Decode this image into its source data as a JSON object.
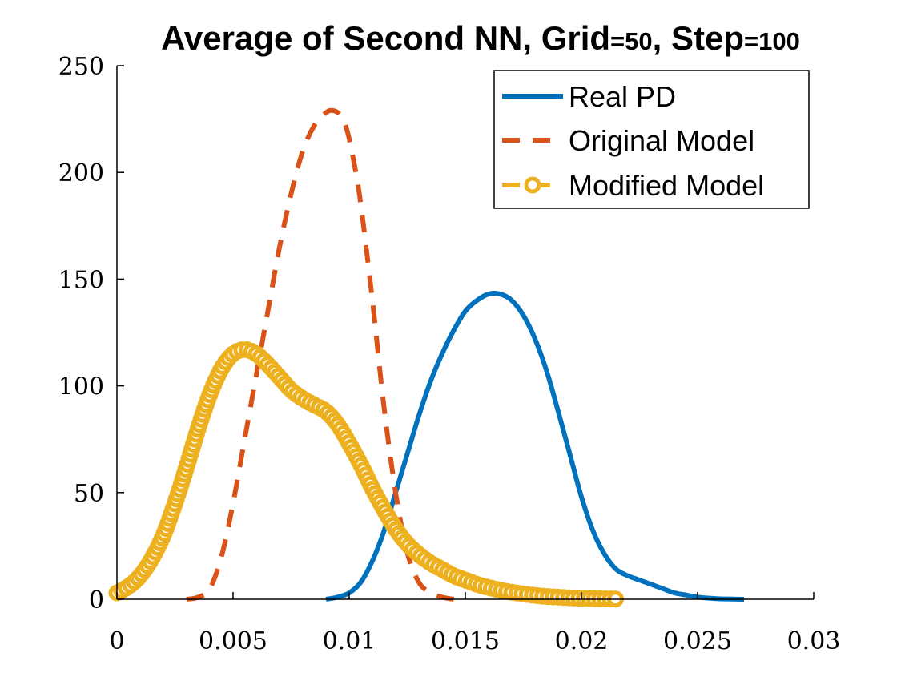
{
  "chart_data": {
    "type": "line",
    "title": {
      "main": "Average of Second NN, Grid",
      "eq1": "=50",
      "sep": ", Step",
      "eq2": "=100"
    },
    "xlabel": "",
    "ylabel": "",
    "xlim": [
      0,
      0.03
    ],
    "ylim": [
      0,
      250
    ],
    "x_ticks": [
      0,
      0.005,
      0.01,
      0.015,
      0.02,
      0.025,
      0.03
    ],
    "x_tick_labels": [
      "0",
      "0.005",
      "0.01",
      "0.015",
      "0.02",
      "0.025",
      "0.03"
    ],
    "y_ticks": [
      0,
      50,
      100,
      150,
      200,
      250
    ],
    "y_tick_labels": [
      "0",
      "50",
      "100",
      "150",
      "200",
      "250"
    ],
    "grid": false,
    "legend_position": "top-right",
    "series": [
      {
        "name": "Real PD",
        "color": "#0072BD",
        "line_style": "solid",
        "marker": "none",
        "x": [
          0.009,
          0.0095,
          0.01,
          0.0105,
          0.011,
          0.0115,
          0.012,
          0.0125,
          0.013,
          0.0135,
          0.014,
          0.0145,
          0.015,
          0.0155,
          0.016,
          0.0165,
          0.017,
          0.0175,
          0.018,
          0.0185,
          0.019,
          0.0195,
          0.02,
          0.0205,
          0.021,
          0.0215,
          0.022,
          0.0225,
          0.023,
          0.0235,
          0.024,
          0.0245,
          0.025,
          0.0255,
          0.026,
          0.0265,
          0.027
        ],
        "y": [
          0,
          1,
          3,
          8,
          18,
          32,
          50,
          68,
          86,
          102,
          115,
          126,
          135,
          140,
          143,
          143,
          140,
          133,
          122,
          107,
          88,
          68,
          48,
          32,
          21,
          14,
          11,
          9,
          7,
          5,
          3,
          2,
          1,
          0.5,
          0.2,
          0.1,
          0
        ]
      },
      {
        "name": "Original Model",
        "color": "#D95319",
        "line_style": "dashed",
        "marker": "none",
        "x": [
          0.003,
          0.0035,
          0.004,
          0.0045,
          0.005,
          0.0055,
          0.006,
          0.0065,
          0.007,
          0.0075,
          0.008,
          0.0085,
          0.009,
          0.0093,
          0.0096,
          0.0099,
          0.0102,
          0.0105,
          0.011,
          0.0115,
          0.012,
          0.0125,
          0.013,
          0.0135,
          0.014,
          0.0145
        ],
        "y": [
          0,
          1,
          5,
          20,
          45,
          75,
          105,
          135,
          165,
          190,
          210,
          222,
          228,
          229,
          227,
          220,
          205,
          185,
          140,
          90,
          50,
          22,
          8,
          3,
          1,
          0
        ]
      },
      {
        "name": "Modified Model",
        "color": "#EDB120",
        "line_style": "dashed",
        "marker": "circle",
        "x": [
          0,
          0.0005,
          0.001,
          0.0015,
          0.002,
          0.0025,
          0.003,
          0.0035,
          0.004,
          0.0045,
          0.005,
          0.0055,
          0.006,
          0.0065,
          0.007,
          0.0075,
          0.008,
          0.0085,
          0.009,
          0.0095,
          0.01,
          0.0105,
          0.011,
          0.0115,
          0.012,
          0.0125,
          0.013,
          0.0135,
          0.014,
          0.0145,
          0.015,
          0.0155,
          0.016,
          0.0165,
          0.017,
          0.0175,
          0.018,
          0.0185,
          0.019,
          0.0195,
          0.02,
          0.0205,
          0.021,
          0.0215
        ],
        "y": [
          3,
          6,
          11,
          19,
          30,
          45,
          62,
          80,
          96,
          108,
          115,
          117,
          115,
          110,
          104,
          98,
          94,
          91,
          88,
          82,
          73,
          63,
          52,
          42,
          33,
          26,
          21,
          17,
          14,
          11,
          9,
          7,
          5.5,
          4.3,
          3.3,
          2.5,
          1.8,
          1.3,
          1,
          0.7,
          0.5,
          0.3,
          0.2,
          0.1
        ]
      }
    ]
  }
}
